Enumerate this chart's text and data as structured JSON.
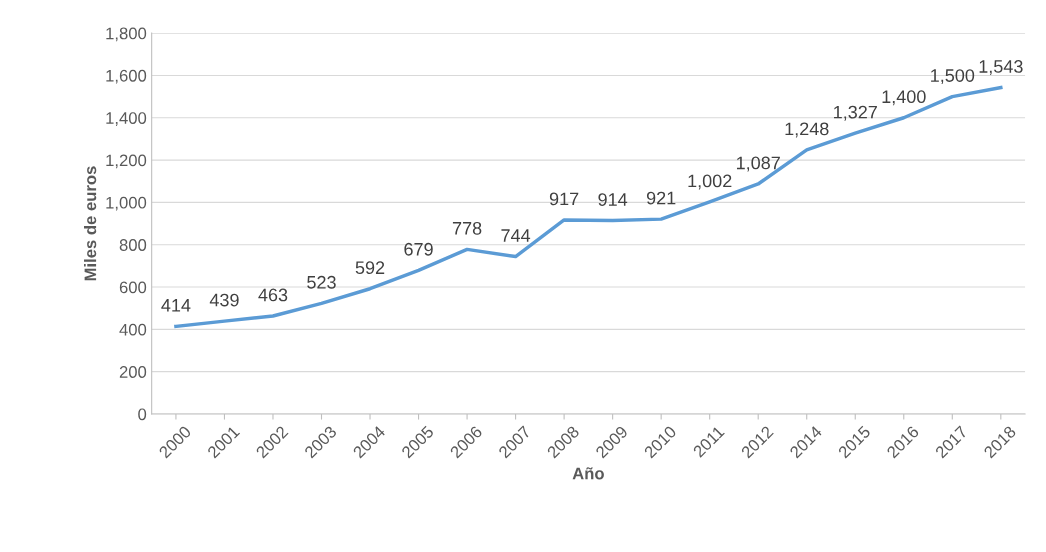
{
  "chart_data": {
    "type": "line",
    "xlabel": "Año",
    "ylabel": "Miles de euros",
    "categories": [
      "2000",
      "2001",
      "2002",
      "2003",
      "2004",
      "2005",
      "2006",
      "2007",
      "2008",
      "2009",
      "2010",
      "2011",
      "2012",
      "2014",
      "2015",
      "2016",
      "2017",
      "2018"
    ],
    "series": [
      {
        "color": "#5b9bd5",
        "values": [
          414,
          439,
          463,
          523,
          592,
          679,
          778,
          744,
          917,
          914,
          921,
          1002,
          1087,
          1248,
          1327,
          1400,
          1500,
          1543
        ]
      }
    ],
    "value_labels": [
      "414",
      "439",
      "463",
      "523",
      "592",
      "679",
      "778",
      "744",
      "917",
      "914",
      "921",
      "1,002",
      "1,087",
      "1,248",
      "1,327",
      "1,400",
      "1,500",
      "1,543"
    ],
    "ylim": [
      0,
      1800
    ],
    "yticks": [
      0,
      200,
      400,
      600,
      800,
      {
        "value": 1000,
        "label": "1,000"
      },
      {
        "value": 1200,
        "label": "1,200"
      },
      {
        "value": 1400,
        "label": "1,400"
      },
      {
        "value": 1600,
        "label": "1,600"
      },
      {
        "value": 1800,
        "label": "1,800"
      }
    ],
    "grid": "y",
    "marker": "none",
    "line_style": "solid"
  }
}
